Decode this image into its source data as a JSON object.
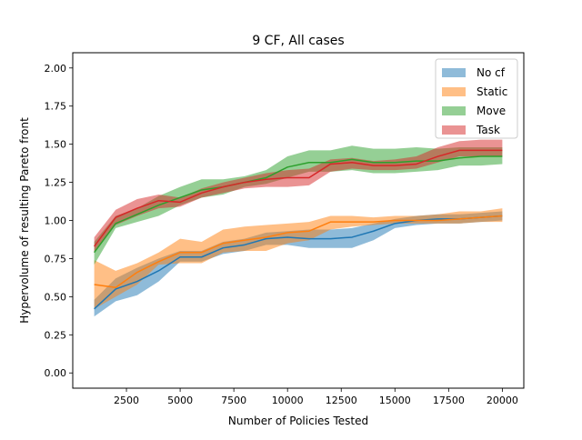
{
  "chart_data": {
    "type": "area",
    "title": "9 CF, All cases",
    "xlabel": "Number of Policies Tested",
    "ylabel": "Hypervolume of resulting Pareto front",
    "xlim": [
      0,
      21000
    ],
    "ylim": [
      -0.1,
      2.1
    ],
    "xticks": [
      2500,
      5000,
      7500,
      10000,
      12500,
      15000,
      17500,
      20000
    ],
    "xtick_labels": [
      "2500",
      "5000",
      "7500",
      "10000",
      "12500",
      "15000",
      "17500",
      "20000"
    ],
    "yticks": [
      0.0,
      0.25,
      0.5,
      0.75,
      1.0,
      1.25,
      1.5,
      1.75,
      2.0
    ],
    "ytick_labels": [
      "0.00",
      "0.25",
      "0.50",
      "0.75",
      "1.00",
      "1.25",
      "1.50",
      "1.75",
      "2.00"
    ],
    "grid": false,
    "legend_position": "upper right",
    "x": [
      1000,
      2000,
      3000,
      4000,
      5000,
      6000,
      7000,
      8000,
      9000,
      10000,
      11000,
      12000,
      13000,
      14000,
      15000,
      16000,
      17000,
      18000,
      19000,
      20000
    ],
    "series": [
      {
        "name": "No cf",
        "line_color": "#1f77b4",
        "fill_color": "#1f77b4",
        "mean": [
          0.42,
          0.55,
          0.6,
          0.67,
          0.76,
          0.76,
          0.82,
          0.84,
          0.88,
          0.89,
          0.88,
          0.88,
          0.89,
          0.93,
          0.98,
          1.0,
          1.01,
          1.01,
          1.02,
          1.03
        ],
        "lower": [
          0.37,
          0.47,
          0.51,
          0.6,
          0.73,
          0.73,
          0.78,
          0.8,
          0.84,
          0.84,
          0.82,
          0.82,
          0.82,
          0.87,
          0.95,
          0.97,
          0.98,
          0.98,
          0.99,
          1.0
        ],
        "upper": [
          0.48,
          0.62,
          0.69,
          0.75,
          0.8,
          0.8,
          0.86,
          0.88,
          0.92,
          0.93,
          0.94,
          0.94,
          0.95,
          0.98,
          1.01,
          1.03,
          1.04,
          1.04,
          1.05,
          1.06
        ]
      },
      {
        "name": "Static",
        "line_color": "#ff7f0e",
        "fill_color": "#ff7f0e",
        "mean": [
          0.58,
          0.56,
          0.66,
          0.73,
          0.79,
          0.79,
          0.85,
          0.87,
          0.89,
          0.92,
          0.93,
          0.99,
          0.99,
          0.99,
          1.0,
          1.0,
          1.0,
          1.01,
          1.02,
          1.03
        ],
        "lower": [
          0.42,
          0.5,
          0.58,
          0.71,
          0.72,
          0.72,
          0.79,
          0.8,
          0.8,
          0.85,
          0.87,
          0.94,
          0.96,
          0.97,
          0.98,
          0.98,
          0.98,
          0.98,
          0.99,
          0.99
        ],
        "upper": [
          0.74,
          0.67,
          0.72,
          0.79,
          0.88,
          0.86,
          0.94,
          0.96,
          0.97,
          0.98,
          0.99,
          1.03,
          1.03,
          1.02,
          1.03,
          1.03,
          1.04,
          1.06,
          1.06,
          1.08
        ]
      },
      {
        "name": "Move",
        "line_color": "#2ca02c",
        "fill_color": "#2ca02c",
        "mean": [
          0.79,
          0.98,
          1.04,
          1.1,
          1.15,
          1.2,
          1.22,
          1.25,
          1.28,
          1.35,
          1.38,
          1.38,
          1.4,
          1.38,
          1.38,
          1.39,
          1.39,
          1.41,
          1.42,
          1.42
        ],
        "lower": [
          0.71,
          0.95,
          0.99,
          1.03,
          1.1,
          1.15,
          1.17,
          1.22,
          1.24,
          1.28,
          1.32,
          1.32,
          1.33,
          1.31,
          1.31,
          1.32,
          1.33,
          1.36,
          1.36,
          1.37
        ],
        "upper": [
          0.86,
          1.03,
          1.08,
          1.16,
          1.22,
          1.27,
          1.27,
          1.29,
          1.33,
          1.42,
          1.46,
          1.46,
          1.49,
          1.47,
          1.47,
          1.48,
          1.47,
          1.48,
          1.48,
          1.48
        ]
      },
      {
        "name": "Task",
        "line_color": "#d62728",
        "fill_color": "#d62728",
        "mean": [
          0.83,
          1.02,
          1.08,
          1.13,
          1.12,
          1.18,
          1.22,
          1.25,
          1.27,
          1.28,
          1.28,
          1.37,
          1.38,
          1.36,
          1.36,
          1.37,
          1.42,
          1.46,
          1.46,
          1.46
        ],
        "lower": [
          0.79,
          0.97,
          1.03,
          1.08,
          1.09,
          1.15,
          1.18,
          1.21,
          1.22,
          1.22,
          1.23,
          1.32,
          1.34,
          1.33,
          1.33,
          1.34,
          1.38,
          1.42,
          1.42,
          1.42
        ],
        "upper": [
          0.89,
          1.07,
          1.14,
          1.17,
          1.15,
          1.21,
          1.25,
          1.28,
          1.31,
          1.33,
          1.34,
          1.4,
          1.41,
          1.39,
          1.4,
          1.42,
          1.48,
          1.52,
          1.53,
          1.53
        ]
      }
    ]
  }
}
